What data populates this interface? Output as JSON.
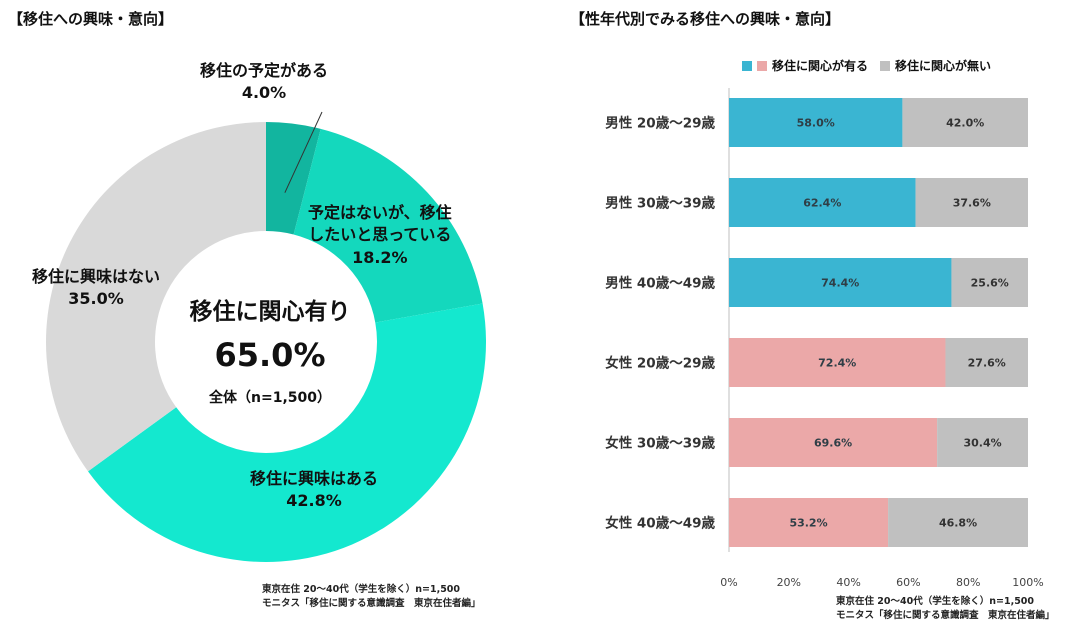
{
  "donut": {
    "title": "【移住への興味・意向】",
    "center_heading": "移住に関心有り",
    "center_value": "65.0%",
    "center_note": "全体（n=1,500）",
    "source_line1": "東京在住 20～40代（学生を除く）n=1,500",
    "source_line2": "モニタス「移住に関する意識調査　東京在住者編」"
  },
  "bar": {
    "title": "【性年代別でみる移住への興味・意向】",
    "source_line1": "東京在住 20～40代（学生を除く）n=1,500",
    "source_line2": "モニタス「移住に関する意識調査　東京在住者編」"
  },
  "colors": {
    "slice_plan": "#12b59f",
    "slice_want": "#14d8bd",
    "slice_interest": "#14e8cf",
    "slice_none": "#d9d9d9",
    "male_interest": "#3ab5d2",
    "female_interest": "#eba8a8",
    "no_interest": "#c0c0c0"
  },
  "chart_data": [
    {
      "type": "pie",
      "title": "【移住への興味・意向】",
      "slices": [
        {
          "label_lines": [
            "移住の予定がある"
          ],
          "label": "移住の予定がある",
          "value": 4.0,
          "display": "4.0%"
        },
        {
          "label_lines": [
            "予定はないが、移住",
            "したいと思っている"
          ],
          "label": "予定はないが、移住したいと思っている",
          "value": 18.2,
          "display": "18.2%"
        },
        {
          "label_lines": [
            "移住に興味はある"
          ],
          "label": "移住に興味はある",
          "value": 42.8,
          "display": "42.8%"
        },
        {
          "label_lines": [
            "移住に興味はない"
          ],
          "label": "移住に興味はない",
          "value": 35.0,
          "display": "35.0%"
        }
      ]
    },
    {
      "type": "bar",
      "orientation": "horizontal",
      "stacked": true,
      "title": "【性年代別でみる移住への興味・意向】",
      "categories": [
        "男性 20歳～29歳",
        "男性 30歳～39歳",
        "男性 40歳～49歳",
        "女性 20歳～29歳",
        "女性 30歳～39歳",
        "女性 40歳～49歳"
      ],
      "series": [
        {
          "name": "移住に関心が有る",
          "values": [
            58.0,
            62.4,
            74.4,
            72.4,
            69.6,
            53.2
          ],
          "labels": [
            "58.0%",
            "62.4%",
            "74.4%",
            "72.4%",
            "69.6%",
            "53.2%"
          ]
        },
        {
          "name": "移住に関心が無い",
          "values": [
            42.0,
            37.6,
            25.6,
            27.6,
            30.4,
            46.8
          ],
          "labels": [
            "42.0%",
            "37.6%",
            "25.6%",
            "27.6%",
            "30.4%",
            "46.8%"
          ]
        }
      ],
      "xlim": [
        0,
        100
      ],
      "x_ticks": [
        "0%",
        "20%",
        "40%",
        "60%",
        "80%",
        "100%"
      ],
      "legend": "top"
    }
  ]
}
